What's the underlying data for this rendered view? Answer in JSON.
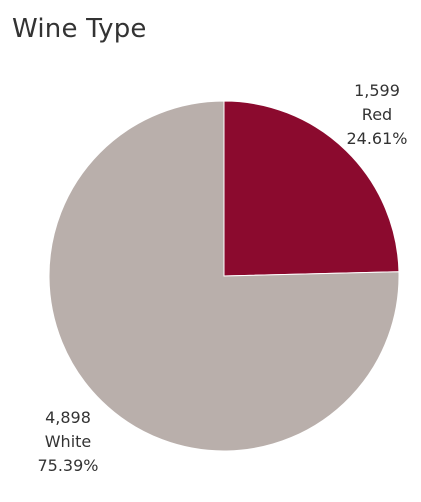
{
  "chart_data": {
    "type": "pie",
    "title": "Wine Type",
    "slices": [
      {
        "label": "Red",
        "value": 1599,
        "value_text": "1,599",
        "percent_text": "24.61%",
        "color": "#8B0A2E"
      },
      {
        "label": "White",
        "value": 4898,
        "value_text": "4,898",
        "percent_text": "75.39%",
        "color": "#B9AFAB"
      }
    ],
    "start_angle": "12 o'clock",
    "direction": "clockwise"
  }
}
